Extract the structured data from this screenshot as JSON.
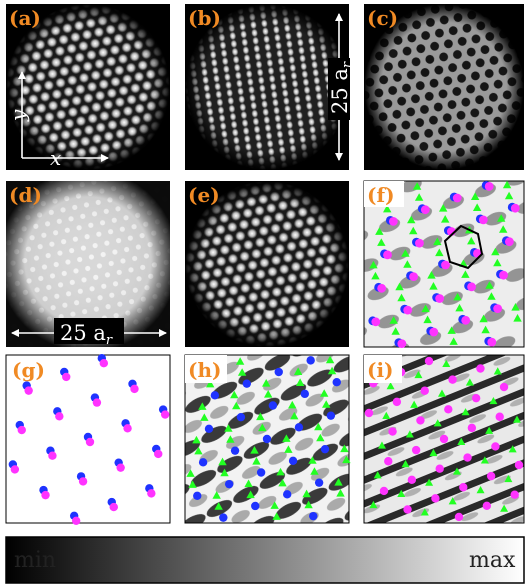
{
  "panels": [
    {
      "label": "(a)",
      "type": "lattice"
    },
    {
      "label": "(b)",
      "type": "lattice-stripe"
    },
    {
      "label": "(c)",
      "type": "lattice-dark"
    },
    {
      "label": "(d)",
      "type": "lattice-diffuse"
    },
    {
      "label": "(e)",
      "type": "lattice"
    },
    {
      "label": "(f)",
      "type": "overlay-three"
    },
    {
      "label": "(g)",
      "type": "overlay-pink-blue"
    },
    {
      "label": "(h)",
      "type": "overlay-green-blue"
    },
    {
      "label": "(i)",
      "type": "overlay-pink-green"
    }
  ],
  "axes": {
    "x_label": "x",
    "y_label": "y"
  },
  "scale_bar": {
    "vertical_label": "25 a",
    "vertical_sub": "r",
    "horizontal_label": "25 a",
    "horizontal_sub": "r"
  },
  "colorbar": {
    "min_label": "min",
    "max_label": "max"
  },
  "marker_colors": {
    "pink": "#ff33ff",
    "blue": "#1f33ff",
    "green": "#22ff22"
  },
  "accent_color": "#f08a24"
}
